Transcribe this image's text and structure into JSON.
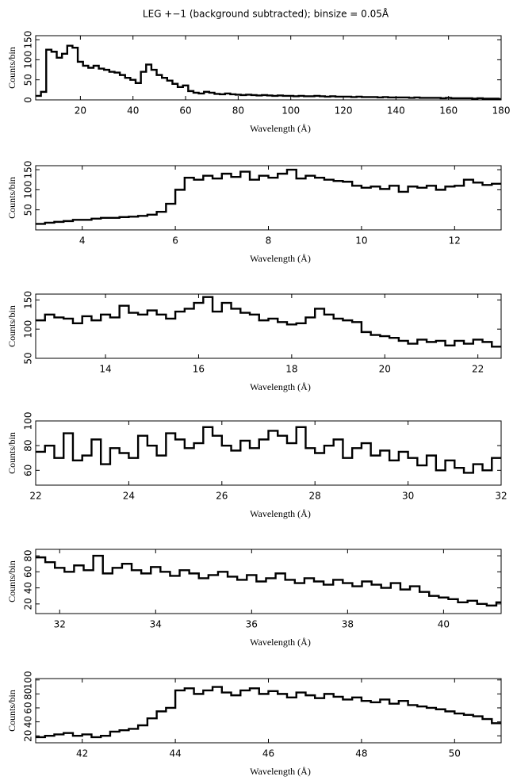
{
  "chart_data": [
    {
      "type": "step",
      "title": "LEG +−1 (background subtracted); binsize = 0.05Å",
      "xlabel": "Wavelength (Å)",
      "ylabel": "Counts/bin",
      "xlim": [
        3,
        180
      ],
      "ylim": [
        0,
        160
      ],
      "xticks": [
        20,
        40,
        60,
        80,
        100,
        120,
        140,
        160,
        180
      ],
      "yticks": [
        0,
        50,
        100,
        150
      ],
      "color": "#000000",
      "x": [
        3,
        5,
        7,
        9,
        11,
        13,
        15,
        17,
        19,
        21,
        23,
        25,
        27,
        29,
        31,
        33,
        35,
        37,
        39,
        41,
        43,
        45,
        47,
        49,
        51,
        53,
        55,
        57,
        59,
        61,
        63,
        65,
        67,
        69,
        71,
        73,
        75,
        77,
        79,
        81,
        83,
        85,
        87,
        89,
        91,
        93,
        95,
        97,
        99,
        101,
        103,
        105,
        107,
        109,
        111,
        113,
        115,
        117,
        119,
        121,
        123,
        125,
        127,
        129,
        131,
        133,
        135,
        137,
        139,
        141,
        143,
        145,
        147,
        149,
        151,
        153,
        155,
        157,
        159,
        161,
        163,
        165,
        167,
        169,
        171,
        173,
        175,
        177,
        179
      ],
      "values": [
        10,
        20,
        125,
        120,
        105,
        115,
        135,
        130,
        95,
        85,
        80,
        85,
        78,
        75,
        70,
        68,
        62,
        55,
        50,
        42,
        70,
        88,
        75,
        62,
        55,
        48,
        40,
        32,
        36,
        22,
        18,
        16,
        20,
        18,
        15,
        14,
        16,
        14,
        13,
        12,
        13,
        12,
        11,
        12,
        11,
        10,
        11,
        10,
        10,
        9,
        10,
        9,
        9,
        10,
        9,
        8,
        9,
        8,
        8,
        8,
        7,
        8,
        7,
        7,
        7,
        6,
        7,
        6,
        6,
        6,
        6,
        5,
        6,
        5,
        5,
        5,
        5,
        4,
        5,
        4,
        4,
        4,
        4,
        3,
        4,
        3,
        3,
        3,
        2
      ]
    },
    {
      "type": "step",
      "xlabel": "Wavelength (Å)",
      "ylabel": "Counts/bin",
      "xlim": [
        3,
        13
      ],
      "ylim": [
        0,
        160
      ],
      "xticks": [
        4,
        6,
        8,
        10,
        12
      ],
      "yticks": [
        50,
        100,
        150
      ],
      "color": "#000000",
      "x": [
        3,
        3.2,
        3.4,
        3.6,
        3.8,
        4,
        4.2,
        4.4,
        4.6,
        4.8,
        5,
        5.2,
        5.4,
        5.6,
        5.8,
        6,
        6.2,
        6.4,
        6.6,
        6.8,
        7,
        7.2,
        7.4,
        7.6,
        7.8,
        8,
        8.2,
        8.4,
        8.6,
        8.8,
        9,
        9.2,
        9.4,
        9.6,
        9.8,
        10,
        10.2,
        10.4,
        10.6,
        10.8,
        11,
        11.2,
        11.4,
        11.6,
        11.8,
        12,
        12.2,
        12.4,
        12.6,
        12.8
      ],
      "values": [
        15,
        18,
        20,
        22,
        25,
        25,
        28,
        30,
        30,
        32,
        33,
        35,
        38,
        45,
        65,
        100,
        130,
        125,
        135,
        128,
        140,
        132,
        145,
        125,
        135,
        130,
        140,
        150,
        128,
        135,
        130,
        125,
        122,
        120,
        110,
        105,
        108,
        102,
        110,
        95,
        108,
        105,
        110,
        100,
        108,
        110,
        125,
        118,
        112,
        115
      ]
    },
    {
      "type": "step",
      "xlabel": "Wavelength (Å)",
      "ylabel": "Counts/bin",
      "xlim": [
        12.5,
        22.5
      ],
      "ylim": [
        50,
        160
      ],
      "xticks": [
        14,
        16,
        18,
        20,
        22
      ],
      "yticks": [
        50,
        100,
        150
      ],
      "color": "#000000",
      "x": [
        12.5,
        12.7,
        12.9,
        13.1,
        13.3,
        13.5,
        13.7,
        13.9,
        14.1,
        14.3,
        14.5,
        14.7,
        14.9,
        15.1,
        15.3,
        15.5,
        15.7,
        15.9,
        16.1,
        16.3,
        16.5,
        16.7,
        16.9,
        17.1,
        17.3,
        17.5,
        17.7,
        17.9,
        18.1,
        18.3,
        18.5,
        18.7,
        18.9,
        19.1,
        19.3,
        19.5,
        19.7,
        19.9,
        20.1,
        20.3,
        20.5,
        20.7,
        20.9,
        21.1,
        21.3,
        21.5,
        21.7,
        21.9,
        22.1,
        22.3
      ],
      "values": [
        115,
        125,
        120,
        118,
        110,
        122,
        115,
        125,
        120,
        140,
        128,
        125,
        132,
        125,
        118,
        130,
        135,
        145,
        155,
        130,
        145,
        135,
        128,
        125,
        115,
        118,
        112,
        108,
        110,
        120,
        135,
        125,
        118,
        115,
        112,
        95,
        90,
        88,
        85,
        80,
        75,
        82,
        78,
        80,
        72,
        80,
        75,
        82,
        78,
        70
      ]
    },
    {
      "type": "step",
      "xlabel": "Wavelength (Å)",
      "ylabel": "Counts/bin",
      "xlim": [
        22,
        32
      ],
      "ylim": [
        48,
        100
      ],
      "xticks": [
        22,
        24,
        26,
        28,
        30,
        32
      ],
      "yticks": [
        60,
        80,
        100
      ],
      "color": "#000000",
      "x": [
        22,
        22.2,
        22.4,
        22.6,
        22.8,
        23,
        23.2,
        23.4,
        23.6,
        23.8,
        24,
        24.2,
        24.4,
        24.6,
        24.8,
        25,
        25.2,
        25.4,
        25.6,
        25.8,
        26,
        26.2,
        26.4,
        26.6,
        26.8,
        27,
        27.2,
        27.4,
        27.6,
        27.8,
        28,
        28.2,
        28.4,
        28.6,
        28.8,
        29,
        29.2,
        29.4,
        29.6,
        29.8,
        30,
        30.2,
        30.4,
        30.6,
        30.8,
        31,
        31.2,
        31.4,
        31.6,
        31.8
      ],
      "values": [
        75,
        80,
        70,
        90,
        68,
        72,
        85,
        65,
        78,
        74,
        70,
        88,
        80,
        72,
        90,
        85,
        78,
        82,
        95,
        88,
        80,
        76,
        84,
        78,
        85,
        92,
        88,
        82,
        95,
        78,
        74,
        80,
        85,
        70,
        78,
        82,
        72,
        76,
        68,
        75,
        70,
        64,
        72,
        60,
        68,
        62,
        58,
        65,
        60,
        70
      ]
    },
    {
      "type": "step",
      "xlabel": "Wavelength (Å)",
      "ylabel": "Counts/bin",
      "xlim": [
        31.5,
        41.2
      ],
      "ylim": [
        8,
        88
      ],
      "xticks": [
        32,
        34,
        36,
        38,
        40
      ],
      "yticks": [
        20,
        40,
        60,
        80
      ],
      "color": "#000000",
      "x": [
        31.5,
        31.7,
        31.9,
        32.1,
        32.3,
        32.5,
        32.7,
        32.9,
        33.1,
        33.3,
        33.5,
        33.7,
        33.9,
        34.1,
        34.3,
        34.5,
        34.7,
        34.9,
        35.1,
        35.3,
        35.5,
        35.7,
        35.9,
        36.1,
        36.3,
        36.5,
        36.7,
        36.9,
        37.1,
        37.3,
        37.5,
        37.7,
        37.9,
        38.1,
        38.3,
        38.5,
        38.7,
        38.9,
        39.1,
        39.3,
        39.5,
        39.7,
        39.9,
        40.1,
        40.3,
        40.5,
        40.7,
        40.9,
        41.1
      ],
      "values": [
        78,
        72,
        65,
        60,
        68,
        62,
        80,
        58,
        65,
        70,
        62,
        58,
        66,
        60,
        55,
        62,
        58,
        52,
        56,
        60,
        54,
        50,
        56,
        48,
        52,
        58,
        50,
        46,
        52,
        48,
        44,
        50,
        46,
        42,
        48,
        44,
        40,
        46,
        38,
        42,
        35,
        30,
        28,
        26,
        22,
        24,
        20,
        18,
        22
      ]
    },
    {
      "type": "step",
      "xlabel": "Wavelength (Å)",
      "ylabel": "Counts/bin",
      "xlim": [
        41,
        51
      ],
      "ylim": [
        10,
        102
      ],
      "xticks": [
        42,
        44,
        46,
        48,
        50
      ],
      "yticks": [
        20,
        40,
        60,
        80,
        100
      ],
      "color": "#000000",
      "x": [
        41,
        41.2,
        41.4,
        41.6,
        41.8,
        42,
        42.2,
        42.4,
        42.6,
        42.8,
        43,
        43.2,
        43.4,
        43.6,
        43.8,
        44,
        44.2,
        44.4,
        44.6,
        44.8,
        45,
        45.2,
        45.4,
        45.6,
        45.8,
        46,
        46.2,
        46.4,
        46.6,
        46.8,
        47,
        47.2,
        47.4,
        47.6,
        47.8,
        48,
        48.2,
        48.4,
        48.6,
        48.8,
        49,
        49.2,
        49.4,
        49.6,
        49.8,
        50,
        50.2,
        50.4,
        50.6,
        50.8
      ],
      "values": [
        18,
        20,
        22,
        24,
        20,
        22,
        18,
        20,
        26,
        28,
        30,
        35,
        45,
        55,
        60,
        85,
        88,
        80,
        85,
        90,
        82,
        78,
        85,
        88,
        80,
        84,
        80,
        75,
        82,
        78,
        74,
        80,
        76,
        72,
        75,
        70,
        68,
        72,
        66,
        70,
        64,
        62,
        60,
        58,
        55,
        52,
        50,
        48,
        44,
        38
      ]
    }
  ]
}
